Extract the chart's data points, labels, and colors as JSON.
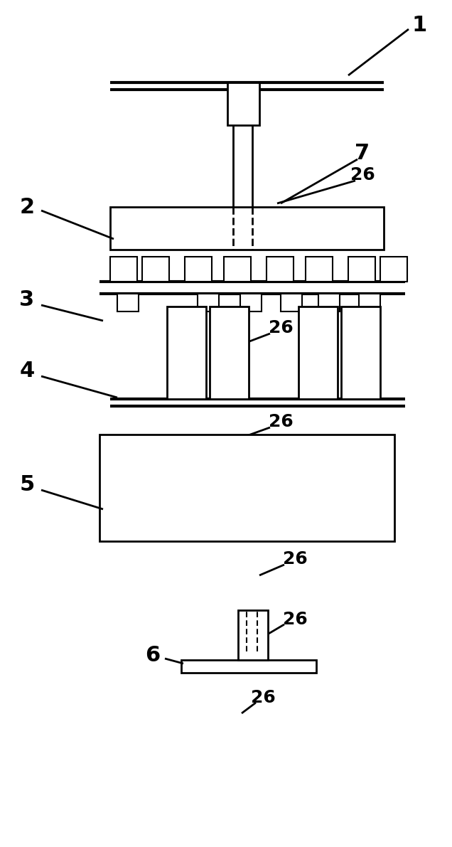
{
  "bg_color": "#ffffff",
  "lw": 2.0,
  "fig_width": 6.36,
  "fig_height": 11.91
}
